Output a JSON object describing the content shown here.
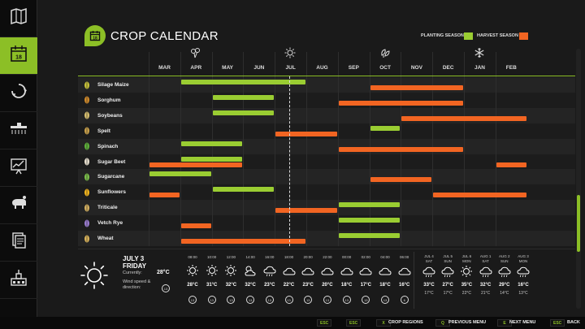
{
  "sidebar": {
    "items": [
      {
        "icon": "map-icon"
      },
      {
        "icon": "calendar-icon",
        "active": true
      },
      {
        "icon": "recycle-icon"
      },
      {
        "icon": "sprayer-icon"
      },
      {
        "icon": "statistics-icon"
      },
      {
        "icon": "animals-icon"
      },
      {
        "icon": "documents-icon"
      },
      {
        "icon": "production-icon"
      }
    ]
  },
  "header": {
    "title": "CROP CALENDAR",
    "icon": "calendar-icon",
    "legend_planting": "PLANTING SEASON",
    "legend_harvest": "HARVEST SEASON"
  },
  "colors": {
    "accent": "#8cbf26",
    "planting": "#9acd32",
    "harvest": "#f26522"
  },
  "calendar": {
    "months": [
      "MAR",
      "APR",
      "MAY",
      "JUN",
      "JUL",
      "AUG",
      "SEP",
      "OCT",
      "NOV",
      "DEC",
      "JAN",
      "FEB"
    ],
    "season_icons": [
      "spring-flower-icon",
      "summer-sun-icon",
      "autumn-leaves-icon",
      "winter-snowflake-icon"
    ],
    "current_month_position": 4.45,
    "crops": [
      {
        "name": "Silage Maize",
        "icon": "maize-icon",
        "planting": [
          [
            1,
            5
          ]
        ],
        "harvest": [
          [
            7,
            10
          ]
        ]
      },
      {
        "name": "Sorghum",
        "icon": "sorghum-icon",
        "planting": [
          [
            2,
            4
          ]
        ],
        "harvest": [
          [
            6,
            10
          ]
        ]
      },
      {
        "name": "Soybeans",
        "icon": "soybeans-icon",
        "planting": [
          [
            2,
            4
          ]
        ],
        "harvest": [
          [
            8,
            12
          ]
        ]
      },
      {
        "name": "Spelt",
        "icon": "spelt-icon",
        "planting": [
          [
            7,
            8
          ]
        ],
        "harvest": [
          [
            4,
            6
          ]
        ]
      },
      {
        "name": "Spinach",
        "icon": "spinach-icon",
        "planting": [
          [
            1,
            3
          ]
        ],
        "harvest": [
          [
            6,
            10
          ]
        ]
      },
      {
        "name": "Sugar Beet",
        "icon": "sugar-beet-icon",
        "planting": [
          [
            1,
            3
          ]
        ],
        "harvest": [
          [
            0,
            3
          ],
          [
            11,
            12
          ]
        ]
      },
      {
        "name": "Sugarcane",
        "icon": "sugarcane-icon",
        "planting": [
          [
            0,
            2
          ]
        ],
        "harvest": [
          [
            7,
            9
          ]
        ]
      },
      {
        "name": "Sunflowers",
        "icon": "sunflower-icon",
        "planting": [
          [
            2,
            4
          ]
        ],
        "harvest": [
          [
            0,
            1
          ],
          [
            9,
            12
          ]
        ]
      },
      {
        "name": "Triticale",
        "icon": "triticale-icon",
        "planting": [
          [
            6,
            8
          ]
        ],
        "harvest": [
          [
            4,
            6
          ]
        ]
      },
      {
        "name": "Vetch Rye",
        "icon": "vetch-rye-icon",
        "planting": [
          [
            6,
            8
          ]
        ],
        "harvest": [
          [
            1,
            2
          ]
        ]
      },
      {
        "name": "Wheat",
        "icon": "wheat-icon",
        "planting": [
          [
            6,
            8
          ]
        ],
        "harvest": [
          [
            1,
            5
          ]
        ]
      }
    ]
  },
  "weather": {
    "date": "JULY 3",
    "weekday": "FRIDAY",
    "currently_label": "Currently:",
    "current_temp": "28°C",
    "wind_label_1": "Wind speed &",
    "wind_label_2": "direction:",
    "current_wind": "13",
    "hours": [
      {
        "time": "08:00",
        "icon": "sun-icon",
        "temp": "28°C",
        "wind": "13"
      },
      {
        "time": "10:00",
        "icon": "sun-icon",
        "temp": "31°C",
        "wind": "13"
      },
      {
        "time": "12:00",
        "icon": "sun-icon",
        "temp": "32°C",
        "wind": "13"
      },
      {
        "time": "14:00",
        "icon": "partly-cloudy-icon",
        "temp": "32°C",
        "wind": "13"
      },
      {
        "time": "16:00",
        "icon": "cloud-rain-icon",
        "temp": "23°C",
        "wind": "13"
      },
      {
        "time": "18:00",
        "icon": "cloud-icon",
        "temp": "22°C",
        "wind": "13"
      },
      {
        "time": "20:00",
        "icon": "cloud-icon",
        "temp": "23°C",
        "wind": "13"
      },
      {
        "time": "22:00",
        "icon": "cloud-icon",
        "temp": "20°C",
        "wind": "13"
      },
      {
        "time": "00:00",
        "icon": "cloud-icon",
        "temp": "18°C",
        "wind": "13"
      },
      {
        "time": "02:00",
        "icon": "cloud-icon",
        "temp": "17°C",
        "wind": "13"
      },
      {
        "time": "04:00",
        "icon": "cloud-icon",
        "temp": "18°C",
        "wind": "13"
      },
      {
        "time": "06:00",
        "icon": "cloud-icon",
        "temp": "16°C",
        "wind": "6"
      }
    ],
    "days": [
      {
        "date": "JUL 4",
        "weekday": "SAT",
        "icon": "cloud-rain-icon",
        "high": "33°C",
        "low": "17°C"
      },
      {
        "date": "JUL 5",
        "weekday": "SUN",
        "icon": "cloud-rain-icon",
        "high": "27°C",
        "low": "17°C"
      },
      {
        "date": "JUL 6",
        "weekday": "MON",
        "icon": "sun-icon",
        "high": "35°C",
        "low": "22°C"
      },
      {
        "date": "AUG 1",
        "weekday": "SAT",
        "icon": "cloud-rain-icon",
        "high": "32°C",
        "low": "21°C"
      },
      {
        "date": "AUG 2",
        "weekday": "SUN",
        "icon": "cloud-rain-icon",
        "high": "29°C",
        "low": "14°C"
      },
      {
        "date": "AUG 3",
        "weekday": "MON",
        "icon": "cloud-rain-icon",
        "high": "16°C",
        "low": "13°C"
      }
    ]
  },
  "footer": {
    "buttons": [
      {
        "key": "ESC",
        "label": ""
      },
      {
        "key": "ESC",
        "label": ""
      },
      {
        "key": "X",
        "label": "CROP REGIONS"
      },
      {
        "key": "Q",
        "label": "PREVIOUS MENU"
      },
      {
        "key": "E",
        "label": "NEXT MENU"
      },
      {
        "key": "ESC",
        "label": "BACK"
      }
    ]
  }
}
